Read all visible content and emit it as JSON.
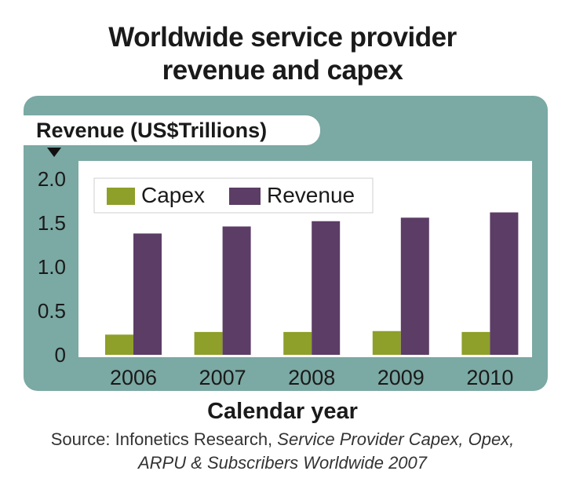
{
  "title_line1": "Worldwide service provider",
  "title_line2": "revenue and capex",
  "source": {
    "prefix": "Source:  Infonetics Research, ",
    "title_part1": "Service Provider Capex, Opex,",
    "title_part2": "ARPU & Subscribers Worldwide 2007"
  },
  "colors": {
    "panel": "#7ba9a4",
    "capex": "#8e9f2a",
    "revenue": "#5c3d66",
    "plot_bg": "#ffffff"
  },
  "chart_data": {
    "type": "bar",
    "title": "Worldwide service provider revenue and capex",
    "ylabel": "Revenue (US$Trillions)",
    "xlabel": "Calendar year",
    "categories": [
      "2006",
      "2007",
      "2008",
      "2009",
      "2010"
    ],
    "series": [
      {
        "name": "Capex",
        "values": [
          0.23,
          0.26,
          0.26,
          0.27,
          0.26
        ],
        "color": "#8e9f2a"
      },
      {
        "name": "Revenue",
        "values": [
          1.38,
          1.46,
          1.52,
          1.56,
          1.62
        ],
        "color": "#5c3d66"
      }
    ],
    "ylim": [
      0,
      2.0
    ],
    "yticks": [
      "0",
      "0.5",
      "1.0",
      "1.5",
      "2.0"
    ],
    "ytick_values": [
      0,
      0.5,
      1.0,
      1.5,
      2.0
    ],
    "legend_placement": "top-left",
    "grid": false
  }
}
